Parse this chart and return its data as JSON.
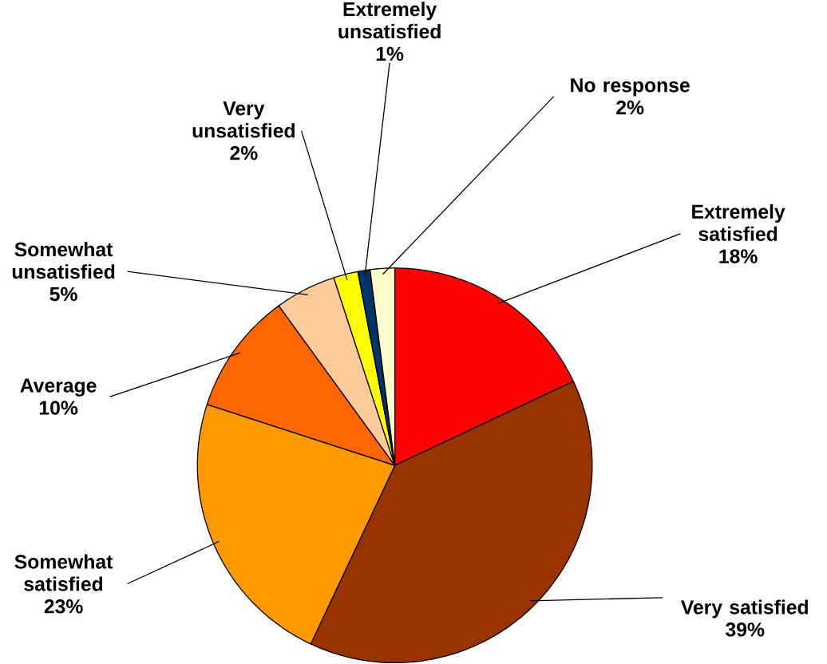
{
  "chart_data": {
    "type": "pie",
    "categories": [
      "Extremely satisfied",
      "Very satisfied",
      "Somewhat satisfied",
      "Average",
      "Somewhat unsatisfied",
      "Very unsatisfied",
      "Extremely unsatisfied",
      "No response"
    ],
    "values": [
      18,
      39,
      23,
      10,
      5,
      2,
      1,
      2
    ],
    "value_labels": [
      "18%",
      "39%",
      "23%",
      "10%",
      "5%",
      "2%",
      "1%",
      "2%"
    ],
    "colors": [
      "#ff0000",
      "#993300",
      "#ff9900",
      "#ff6600",
      "#ffcc99",
      "#ffff00",
      "#003366",
      "#ffffcc"
    ]
  }
}
